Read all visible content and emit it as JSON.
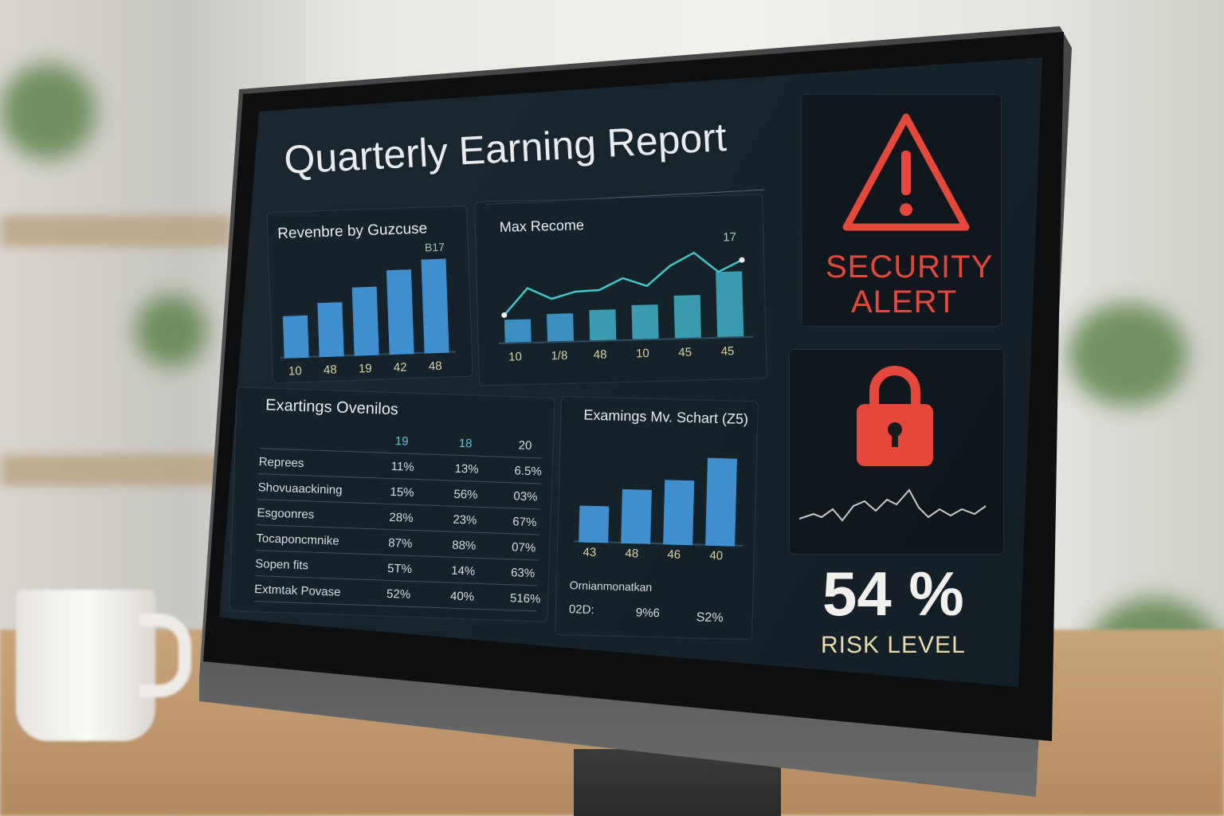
{
  "title": "Quarterly Earning Report",
  "revenue_chart": {
    "title": "Revenbre by Guzcuse",
    "legend": "B17",
    "categories": [
      "10",
      "48",
      "19",
      "42",
      "48"
    ],
    "values": [
      45,
      58,
      73,
      90,
      100
    ],
    "color": "#3f8fcf"
  },
  "max_chart": {
    "title": "Max Recome",
    "legend": "17",
    "categories": [
      "10",
      "1/8",
      "48",
      "10",
      "45",
      "45"
    ],
    "bar_values": [
      25,
      30,
      33,
      37,
      46,
      70
    ],
    "line_values": [
      30,
      58,
      46,
      53,
      54,
      66,
      57,
      78,
      91,
      70,
      82
    ],
    "bar_color": "#3a9ab0",
    "line_color": "#3ec8c8"
  },
  "overview": {
    "title": "Exartings Ovenilos",
    "columns": [
      "19",
      "18",
      "20"
    ],
    "rows": [
      {
        "label": "Reprees",
        "values": [
          "11%",
          "13%",
          "6.5%"
        ]
      },
      {
        "label": "Shovuaackining",
        "values": [
          "15%",
          "56%",
          "03%"
        ]
      },
      {
        "label": "Esgoonres",
        "values": [
          "28%",
          "23%",
          "67%"
        ]
      },
      {
        "label": "Tocaponcmnike",
        "values": [
          "87%",
          "88%",
          "07%"
        ]
      },
      {
        "label": "Sopen fits",
        "values": [
          "5T%",
          "14%",
          "63%"
        ]
      },
      {
        "label": "Extmtak Povase",
        "values": [
          "52%",
          "40%",
          "516%"
        ]
      }
    ]
  },
  "earnings_chart": {
    "title": "Examings Mv. Schart (Z5)",
    "categories": [
      "43",
      "48",
      "46",
      "40"
    ],
    "values": [
      42,
      62,
      74,
      100
    ],
    "footer_label": "Ornianmonatkan",
    "footer_values": [
      "02D:",
      "9%6",
      "S2%"
    ]
  },
  "security": {
    "alert_text_1": "SECURITY",
    "alert_text_2": "ALERT",
    "alert_color": "#e5483a",
    "icon": "warning-triangle-icon",
    "lock_icon": "padlock-icon",
    "risk_value": "54 %",
    "risk_percent": 54,
    "risk_label": "RISK LEVEL"
  }
}
